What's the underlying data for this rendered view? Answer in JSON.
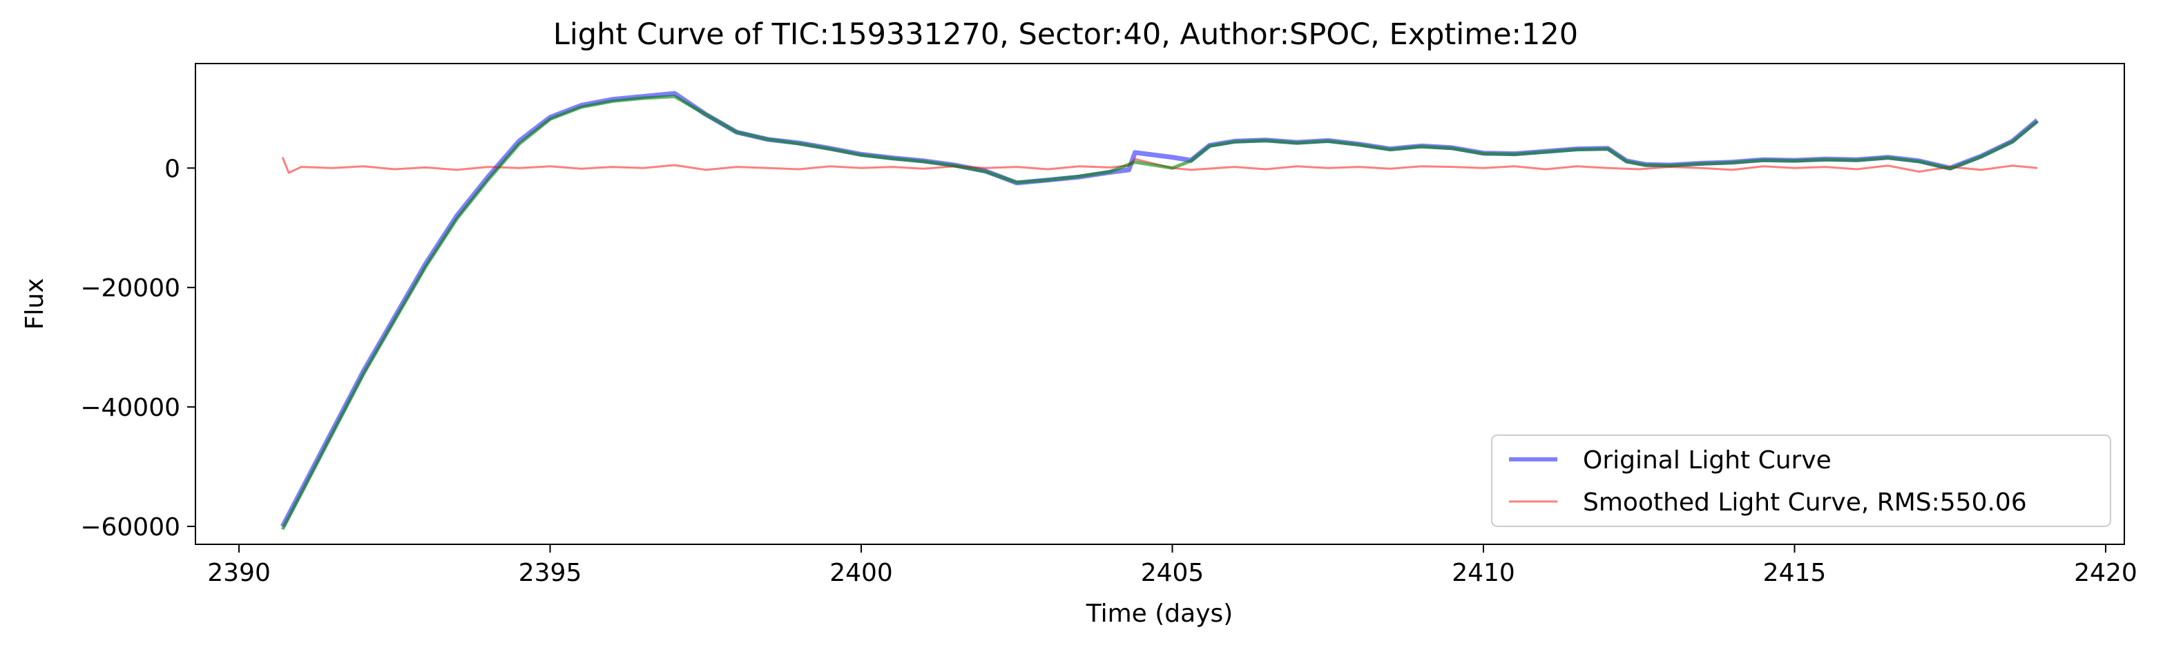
{
  "chart_data": {
    "type": "line",
    "title": "Light Curve of TIC:159331270, Sector:40, Author:SPOC, Exptime:120",
    "xlabel": "Time (days)",
    "ylabel": "Flux",
    "xlim": [
      2389.3,
      2420.3
    ],
    "ylim": [
      -63000,
      17500
    ],
    "xticks": [
      2390,
      2395,
      2400,
      2405,
      2410,
      2415,
      2420
    ],
    "yticks": [
      -60000,
      -40000,
      -20000,
      0
    ],
    "ytick_labels": [
      "−60000",
      "−40000",
      "−20000",
      "0"
    ],
    "grid": false,
    "legend_position": "lower-right",
    "series": [
      {
        "name": "Original Light Curve",
        "color": "#0000ff",
        "opacity": 0.5,
        "x": [
          2390.7,
          2391.0,
          2391.5,
          2392.0,
          2392.5,
          2393.0,
          2393.5,
          2394.0,
          2394.5,
          2395.0,
          2395.5,
          2396.0,
          2396.5,
          2397.0,
          2397.5,
          2398.0,
          2398.5,
          2399.0,
          2399.5,
          2400.0,
          2400.5,
          2401.0,
          2401.5,
          2402.0,
          2402.5,
          2403.0,
          2403.5,
          2404.0,
          2404.3,
          2404.4,
          2405.0,
          2405.3,
          2405.6,
          2406.0,
          2406.5,
          2407.0,
          2407.5,
          2408.0,
          2408.5,
          2409.0,
          2409.5,
          2410.0,
          2410.5,
          2411.0,
          2411.5,
          2412.0,
          2412.3,
          2412.6,
          2413.0,
          2413.5,
          2414.0,
          2414.5,
          2415.0,
          2415.5,
          2416.0,
          2416.5,
          2417.0,
          2417.5,
          2418.0,
          2418.5,
          2418.9
        ],
        "y": [
          -60000,
          -54000,
          -44000,
          -34000,
          -25000,
          -16000,
          -8000,
          -1500,
          4500,
          8500,
          10500,
          11500,
          12000,
          12500,
          9000,
          6000,
          4800,
          4200,
          3300,
          2300,
          1700,
          1200,
          500,
          -500,
          -2500,
          -2000,
          -1500,
          -700,
          -300,
          2600,
          1800,
          1300,
          3800,
          4500,
          4700,
          4300,
          4600,
          4000,
          3200,
          3700,
          3400,
          2500,
          2400,
          2800,
          3200,
          3300,
          1200,
          600,
          500,
          800,
          1000,
          1400,
          1300,
          1500,
          1400,
          1800,
          1200,
          0,
          2000,
          4500,
          8000
        ]
      },
      {
        "name": "Smoothed Light Curve, RMS:550.06",
        "color": "#ff0000",
        "opacity": 0.5,
        "x": [
          2390.7,
          2390.8,
          2391.0,
          2391.5,
          2392.0,
          2392.5,
          2393.0,
          2393.5,
          2394.0,
          2394.5,
          2395.0,
          2395.5,
          2396.0,
          2396.5,
          2397.0,
          2397.5,
          2398.0,
          2398.5,
          2399.0,
          2399.5,
          2400.0,
          2400.5,
          2401.0,
          2401.5,
          2402.0,
          2402.5,
          2403.0,
          2403.5,
          2404.0,
          2404.3,
          2404.4,
          2405.0,
          2405.3,
          2406.0,
          2406.5,
          2407.0,
          2407.5,
          2408.0,
          2408.5,
          2409.0,
          2409.5,
          2410.0,
          2410.5,
          2411.0,
          2411.5,
          2412.0,
          2412.5,
          2413.0,
          2413.5,
          2414.0,
          2414.5,
          2415.0,
          2415.5,
          2416.0,
          2416.5,
          2417.0,
          2417.5,
          2418.0,
          2418.5,
          2418.9
        ],
        "y": [
          1800,
          -800,
          200,
          0,
          300,
          -200,
          100,
          -300,
          200,
          0,
          300,
          -100,
          200,
          0,
          500,
          -300,
          200,
          0,
          -200,
          300,
          0,
          200,
          -100,
          300,
          0,
          200,
          -200,
          300,
          100,
          400,
          1500,
          0,
          -300,
          200,
          -200,
          300,
          0,
          200,
          -100,
          300,
          200,
          0,
          300,
          -200,
          300,
          0,
          -200,
          200,
          0,
          -300,
          300,
          0,
          200,
          -200,
          400,
          -600,
          200,
          -300,
          400,
          0
        ]
      },
      {
        "name": "",
        "color": "#008000",
        "opacity": 0.6,
        "x": [
          2390.7,
          2391.0,
          2391.5,
          2392.0,
          2392.5,
          2393.0,
          2393.5,
          2394.0,
          2394.5,
          2395.0,
          2395.5,
          2396.0,
          2396.5,
          2397.0,
          2397.5,
          2398.0,
          2398.5,
          2399.0,
          2399.5,
          2400.0,
          2400.5,
          2401.0,
          2401.5,
          2402.0,
          2402.5,
          2403.0,
          2403.5,
          2404.0,
          2404.4,
          2405.0,
          2405.3,
          2405.6,
          2406.0,
          2406.5,
          2407.0,
          2407.5,
          2408.0,
          2408.5,
          2409.0,
          2409.5,
          2410.0,
          2410.5,
          2411.0,
          2411.5,
          2412.0,
          2412.3,
          2412.6,
          2413.0,
          2413.5,
          2414.0,
          2414.5,
          2415.0,
          2415.5,
          2416.0,
          2416.5,
          2417.0,
          2417.5,
          2418.0,
          2418.5,
          2418.9
        ],
        "y": [
          -60500,
          -54500,
          -44500,
          -34500,
          -25500,
          -16500,
          -8500,
          -2000,
          4000,
          8200,
          10200,
          11200,
          11700,
          12000,
          9000,
          6000,
          4800,
          4100,
          3200,
          2200,
          1600,
          1100,
          400,
          -600,
          -2400,
          -2000,
          -1400,
          -600,
          1000,
          0,
          1200,
          3700,
          4400,
          4600,
          4200,
          4500,
          3900,
          3100,
          3600,
          3300,
          2400,
          2300,
          2700,
          3100,
          3200,
          1100,
          500,
          400,
          700,
          900,
          1300,
          1200,
          1400,
          1300,
          1700,
          1100,
          -100,
          1900,
          4400,
          7800
        ]
      }
    ]
  }
}
